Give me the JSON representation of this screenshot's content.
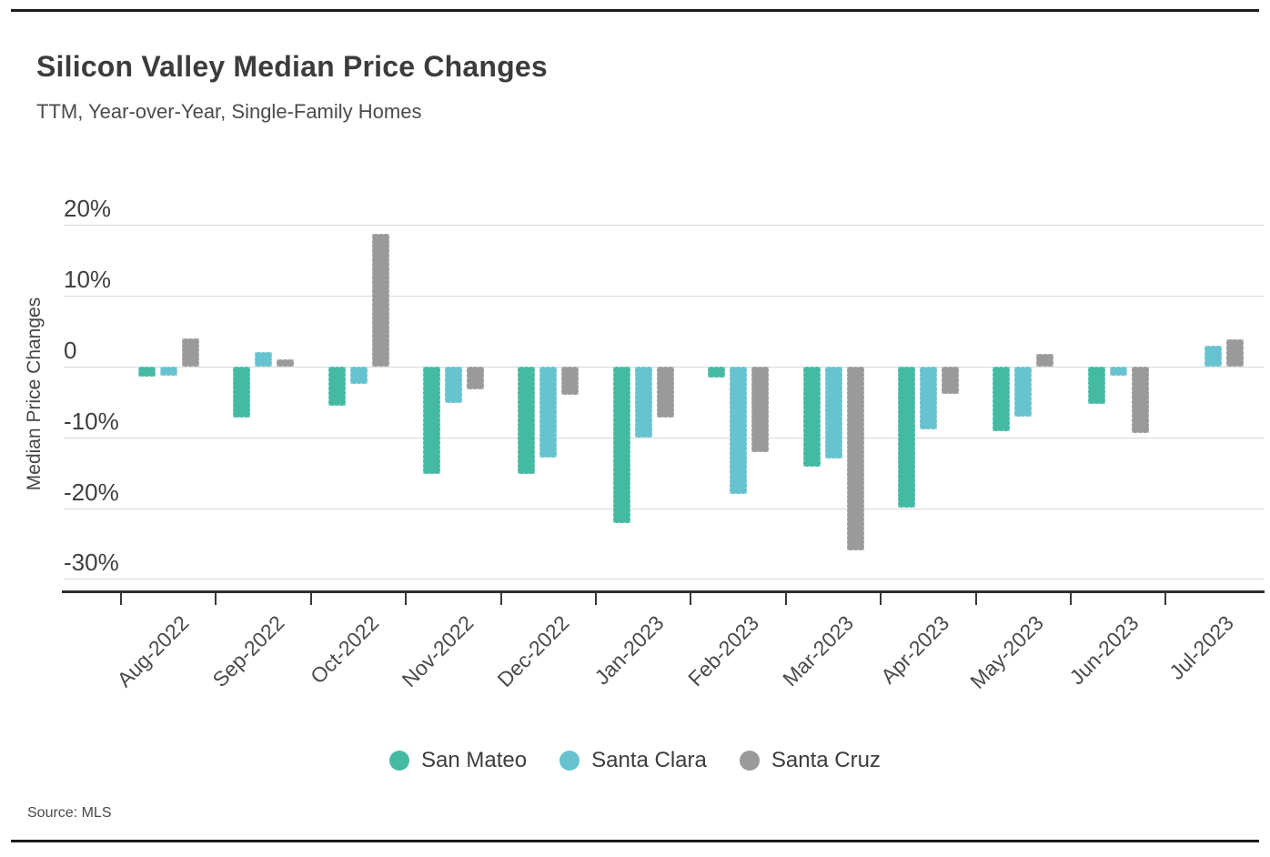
{
  "chart_data": {
    "type": "bar",
    "title": "Silicon Valley Median Price Changes",
    "subtitle": "TTM, Year-over-Year, Single-Family Homes",
    "ylabel": "Median Price Changes",
    "source": "Source: MLS",
    "grid": true,
    "legend_position": "bottom",
    "ylim": [
      -33,
      22
    ],
    "y_ticks": [
      {
        "value": 20,
        "label": "20%"
      },
      {
        "value": 10,
        "label": "10%"
      },
      {
        "value": 0,
        "label": "0"
      },
      {
        "value": -10,
        "label": "-10%"
      },
      {
        "value": -20,
        "label": "-20%"
      },
      {
        "value": -30,
        "label": "-30%"
      }
    ],
    "categories": [
      "Aug-2022",
      "Sep-2022",
      "Oct-2022",
      "Nov-2022",
      "Dec-2022",
      "Jan-2023",
      "Feb-2023",
      "Mar-2023",
      "Apr-2023",
      "May-2023",
      "Jun-2023",
      "Jul-2023"
    ],
    "series": [
      {
        "name": "San Mateo",
        "color": "#45BAA3",
        "values": [
          -1.4,
          -7.2,
          -5.5,
          -15.2,
          -15.2,
          -22.1,
          -1.6,
          -14.1,
          -19.9,
          -9.1,
          -5.3,
          0
        ]
      },
      {
        "name": "Santa Clara",
        "color": "#67C3CF",
        "values": [
          -1.3,
          2.0,
          -2.4,
          -5.1,
          -12.9,
          -10.0,
          -18.0,
          -13.0,
          -8.9,
          -7.1,
          -1.3,
          2.9
        ]
      },
      {
        "name": "Santa Cruz",
        "color": "#9A9A9A",
        "values": [
          4.0,
          1.0,
          18.8,
          -3.2,
          -4.0,
          -7.2,
          -12.1,
          -25.9,
          -3.8,
          1.8,
          -9.4,
          3.8
        ]
      }
    ]
  },
  "colors": {
    "axis": "#2E2E2E",
    "gridline": "#D9D9D9",
    "frame_rule": "#1C1C1C",
    "title_text": "#3C3C3C",
    "body_text": "#4A4A4A",
    "background": "#FFFFFF"
  }
}
